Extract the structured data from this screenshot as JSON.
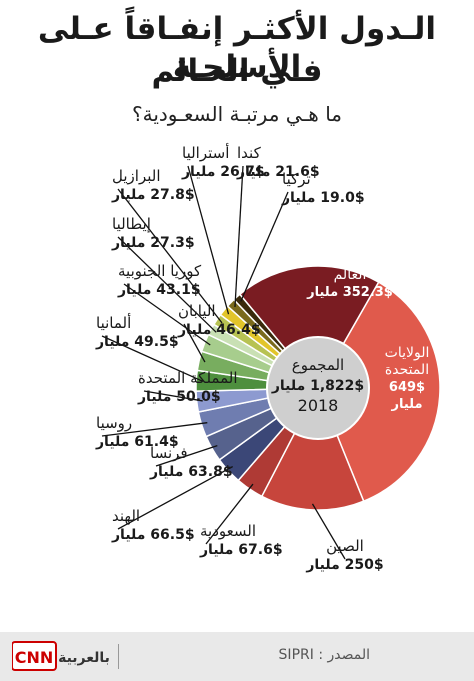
{
  "header": {
    "title_line1": "الـدول الأكثـر إنفـاقاً عـلى الأسلحـة",
    "title_line2": "فـي العـالم",
    "subtitle": "ما هـي مرتبـة السعـودية؟"
  },
  "center": {
    "label": "المجموع",
    "total": "1,822$ مليار",
    "year": "2018"
  },
  "footer": {
    "source_label": "المصدر : SIPRI",
    "logo_text": "CNN بالعربية",
    "logo_icon": "cnn-arabic-logo"
  },
  "chart_data": {
    "type": "pie",
    "unit": "مليار $",
    "total": 1822,
    "year": 2018,
    "slices": [
      {
        "name": "الولايات المتحدة",
        "value": 649,
        "value_label": "649$",
        "unit_label": "مليار",
        "color": "#e05a4c",
        "label_inside": true
      },
      {
        "name": "الصين",
        "value": 250,
        "value_label": "250$",
        "unit_label": "مليار",
        "color": "#c7453c",
        "label_inside": false
      },
      {
        "name": "السعودية",
        "value": 67.6,
        "value_label": "67.6$",
        "unit_label": "مليار",
        "color": "#af3a35",
        "label_inside": false
      },
      {
        "name": "الهند",
        "value": 66.5,
        "value_label": "66.5$",
        "unit_label": "مليار",
        "color": "#3b4777",
        "label_inside": false
      },
      {
        "name": "فرنسا",
        "value": 63.8,
        "value_label": "63.8$",
        "unit_label": "مليار",
        "color": "#56628d",
        "label_inside": false
      },
      {
        "name": "روسيا",
        "value": 61.4,
        "value_label": "61.4$",
        "unit_label": "مليار",
        "color": "#6f7db0",
        "label_inside": false
      },
      {
        "name": "المملكة المتحدة",
        "value": 50.0,
        "value_label": "50.0$",
        "unit_label": "مليار",
        "color": "#8d9ad0",
        "label_inside": false
      },
      {
        "name": "ألمانيا",
        "value": 49.5,
        "value_label": "49.5$",
        "unit_label": "مليار",
        "color": "#4e8f3e",
        "label_inside": false
      },
      {
        "name": "اليابان",
        "value": 46.4,
        "value_label": "46.4$",
        "unit_label": "مليار",
        "color": "#78ad5f",
        "label_inside": false
      },
      {
        "name": "كوريا الجنوبية",
        "value": 43.1,
        "value_label": "43.1$",
        "unit_label": "مليار",
        "color": "#a7cd8d",
        "label_inside": false
      },
      {
        "name": "إيطاليا",
        "value": 27.3,
        "value_label": "27.3$",
        "unit_label": "مليار",
        "color": "#c9e0b4",
        "label_inside": false
      },
      {
        "name": "البرازيل",
        "value": 27.8,
        "value_label": "27.8$",
        "unit_label": "مليار",
        "color": "#b7c253",
        "label_inside": false
      },
      {
        "name": "أستراليا",
        "value": 26.7,
        "value_label": "26.7$",
        "unit_label": "مليار",
        "color": "#e2c52a",
        "label_inside": false
      },
      {
        "name": "كندا",
        "value": 21.6,
        "value_label": "21.6$",
        "unit_label": "مليار",
        "color": "#7a6a1c",
        "label_inside": false
      },
      {
        "name": "تركيا",
        "value": 19.0,
        "value_label": "19.0$",
        "unit_label": "مليار",
        "color": "#3a2a0c",
        "label_inside": false
      },
      {
        "name": "بقية دول العالم",
        "value": 352.3,
        "value_label": "352.3$",
        "unit_label": "مليار",
        "color": "#7a1c22",
        "label_inside": true
      }
    ]
  }
}
